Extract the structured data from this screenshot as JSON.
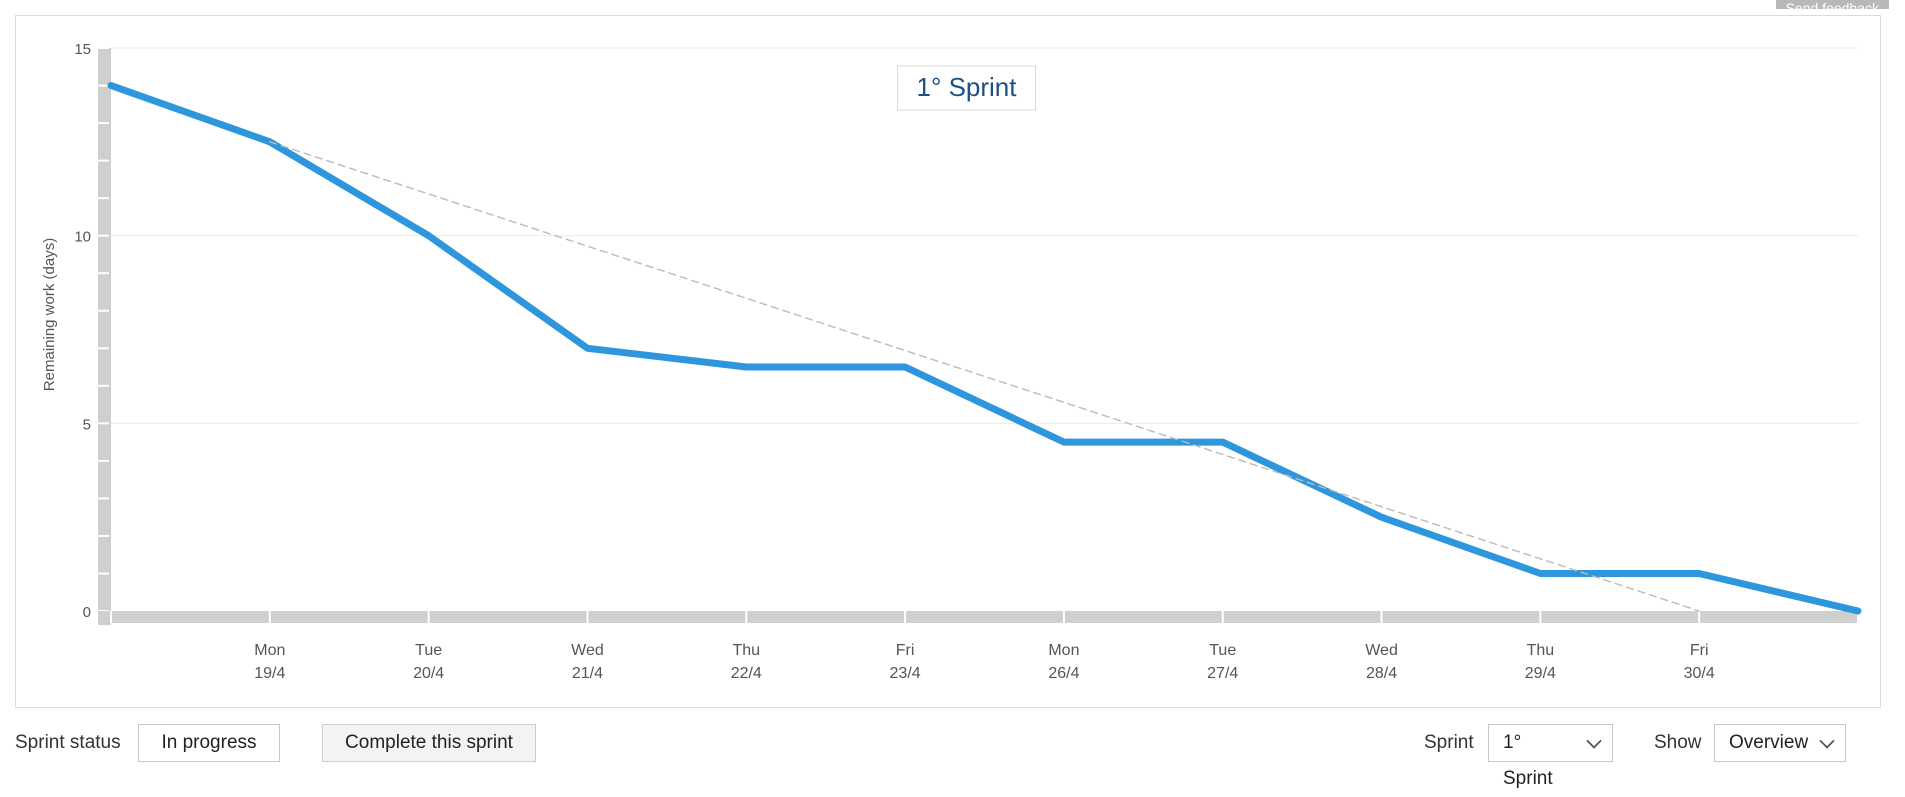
{
  "feedback": {
    "label": "Send feedback"
  },
  "chart_data": {
    "type": "line",
    "title": "1° Sprint",
    "ylabel": "Remaining work (days)",
    "xlabel": "",
    "ylim": [
      0,
      15
    ],
    "yticks": [
      0,
      5,
      10,
      15
    ],
    "categories": [
      {
        "day": "",
        "date": ""
      },
      {
        "day": "Mon",
        "date": "19/4"
      },
      {
        "day": "Tue",
        "date": "20/4"
      },
      {
        "day": "Wed",
        "date": "21/4"
      },
      {
        "day": "Thu",
        "date": "22/4"
      },
      {
        "day": "Fri",
        "date": "23/4"
      },
      {
        "day": "Mon",
        "date": "26/4"
      },
      {
        "day": "Tue",
        "date": "27/4"
      },
      {
        "day": "Wed",
        "date": "28/4"
      },
      {
        "day": "Thu",
        "date": "29/4"
      },
      {
        "day": "Fri",
        "date": "30/4"
      },
      {
        "day": "",
        "date": ""
      }
    ],
    "series": [
      {
        "values": [
          14,
          12.5,
          10,
          7,
          6.5,
          6.5,
          4.5,
          4.5,
          2.5,
          1,
          1,
          0
        ],
        "color": "#2e96dc"
      },
      {
        "values": [
          null,
          12.5,
          11.11,
          9.72,
          8.33,
          6.94,
          5.56,
          4.17,
          2.78,
          1.39,
          0,
          null
        ],
        "color": "#bbbbbb",
        "dashed": true
      }
    ],
    "grid": true
  },
  "toolbar": {
    "sprint_status_label": "Sprint status",
    "sprint_status_value": "In progress",
    "complete_button": "Complete this sprint",
    "sprint_label": "Sprint",
    "sprint_value": "1° Sprint",
    "show_label": "Show",
    "show_value": "Overview"
  }
}
